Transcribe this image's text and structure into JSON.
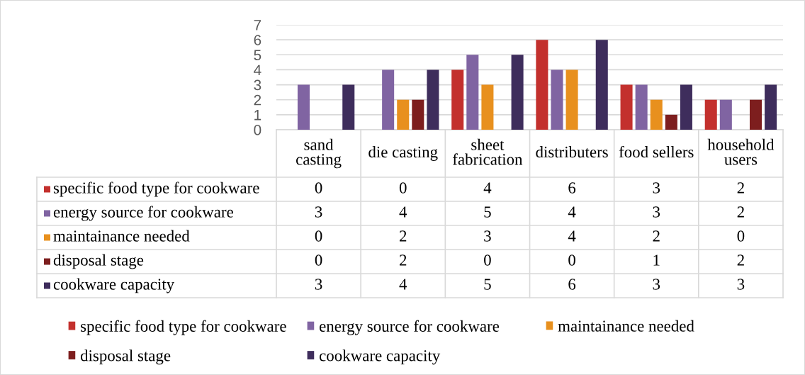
{
  "chart_data": {
    "type": "bar",
    "categories": [
      "sand casting",
      "die casting",
      "sheet fabrication",
      "distributers",
      "food sellers",
      "household users"
    ],
    "series": [
      {
        "name": "specific food type for cookware",
        "color": "#c3302d",
        "values": [
          0,
          0,
          4,
          6,
          3,
          2
        ]
      },
      {
        "name": "energy source for cookware",
        "color": "#8064a2",
        "values": [
          3,
          4,
          5,
          4,
          3,
          2
        ]
      },
      {
        "name": "maintainance needed",
        "color": "#e8901e",
        "values": [
          0,
          2,
          3,
          4,
          2,
          0
        ]
      },
      {
        "name": "disposal stage",
        "color": "#7d1e1e",
        "values": [
          0,
          2,
          0,
          0,
          1,
          2
        ]
      },
      {
        "name": "cookware capacity",
        "color": "#3e2d5c",
        "values": [
          3,
          4,
          5,
          6,
          3,
          3
        ]
      }
    ],
    "ylim": [
      0,
      7
    ],
    "yticks": [
      0,
      1,
      2,
      3,
      4,
      5,
      6,
      7
    ],
    "grid": "y",
    "legend": "bottom",
    "data_labels": true
  }
}
